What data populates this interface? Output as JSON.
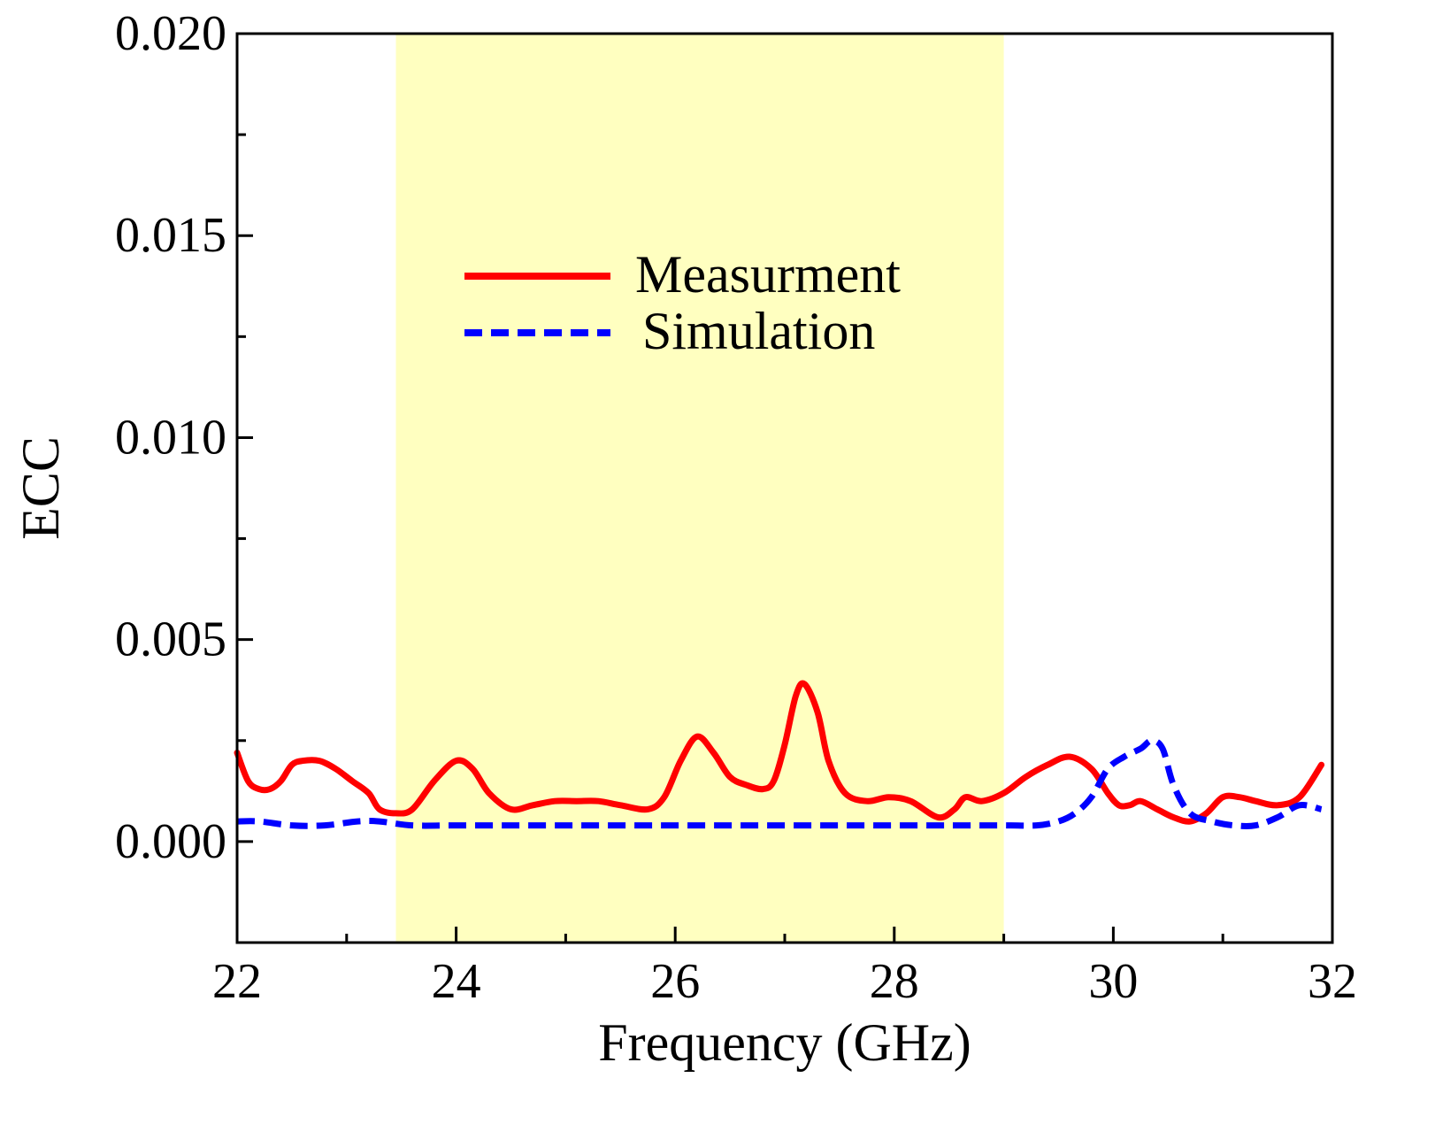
{
  "chart_data": {
    "type": "line",
    "title": "",
    "xlabel": "Frequency (GHz)",
    "ylabel": "ECC",
    "xlim": [
      22,
      32
    ],
    "ylim": [
      -0.0025,
      0.02
    ],
    "xticks": [
      22,
      24,
      26,
      28,
      30,
      32
    ],
    "xtick_labels": [
      "22",
      "24",
      "26",
      "28",
      "30",
      "32"
    ],
    "yticks": [
      0.0,
      0.005,
      0.01,
      0.015,
      0.02
    ],
    "ytick_labels": [
      "0.000",
      "0.005",
      "0.010",
      "0.015",
      "0.020"
    ],
    "highlight_band": {
      "x_start": 23.45,
      "x_end": 29.0,
      "color": "#ffffc0"
    },
    "legend_position": "upper-center",
    "series": [
      {
        "name": "Measurment",
        "color": "#ff0000",
        "style": "solid",
        "x": [
          22.0,
          22.1,
          22.2,
          22.3,
          22.4,
          22.5,
          22.6,
          22.75,
          22.9,
          23.05,
          23.2,
          23.3,
          23.45,
          23.6,
          23.8,
          24.0,
          24.15,
          24.3,
          24.5,
          24.7,
          24.9,
          25.1,
          25.3,
          25.5,
          25.75,
          25.9,
          26.05,
          26.2,
          26.35,
          26.5,
          26.65,
          26.8,
          26.9,
          27.0,
          27.1,
          27.18,
          27.3,
          27.4,
          27.55,
          27.75,
          27.95,
          28.15,
          28.4,
          28.55,
          28.65,
          28.8,
          29.0,
          29.2,
          29.4,
          29.6,
          29.8,
          29.95,
          30.05,
          30.15,
          30.25,
          30.4,
          30.55,
          30.7,
          30.85,
          31.0,
          31.15,
          31.3,
          31.5,
          31.7,
          31.9
        ],
        "values": [
          0.0022,
          0.0015,
          0.0013,
          0.0013,
          0.0015,
          0.0019,
          0.002,
          0.002,
          0.0018,
          0.0015,
          0.0012,
          0.0008,
          0.0007,
          0.0008,
          0.0015,
          0.002,
          0.0018,
          0.0012,
          0.0008,
          0.0009,
          0.001,
          0.001,
          0.001,
          0.0009,
          0.0008,
          0.0011,
          0.002,
          0.0026,
          0.0022,
          0.0016,
          0.0014,
          0.0013,
          0.0015,
          0.0024,
          0.0036,
          0.0039,
          0.0032,
          0.002,
          0.0012,
          0.001,
          0.0011,
          0.001,
          0.0006,
          0.0008,
          0.0011,
          0.001,
          0.0012,
          0.0016,
          0.0019,
          0.0021,
          0.0018,
          0.0012,
          0.0009,
          0.0009,
          0.001,
          0.0008,
          0.0006,
          0.0005,
          0.0007,
          0.0011,
          0.0011,
          0.001,
          0.0009,
          0.0011,
          0.0019
        ]
      },
      {
        "name": "Simulation",
        "color": "#0000ff",
        "style": "dashed",
        "x": [
          22.0,
          22.2,
          22.5,
          22.8,
          23.1,
          23.3,
          23.6,
          24.0,
          24.5,
          25.0,
          25.5,
          26.0,
          26.5,
          27.0,
          27.5,
          28.0,
          28.5,
          29.0,
          29.3,
          29.5,
          29.65,
          29.8,
          29.95,
          30.1,
          30.25,
          30.35,
          30.45,
          30.55,
          30.7,
          30.9,
          31.1,
          31.3,
          31.5,
          31.7,
          31.9
        ],
        "values": [
          0.0005,
          0.0005,
          0.0004,
          0.0004,
          0.0005,
          0.0005,
          0.0004,
          0.0004,
          0.0004,
          0.0004,
          0.0004,
          0.0004,
          0.0004,
          0.0004,
          0.0004,
          0.0004,
          0.0004,
          0.0004,
          0.0004,
          0.0005,
          0.0007,
          0.0011,
          0.0018,
          0.0021,
          0.0023,
          0.0025,
          0.0023,
          0.0014,
          0.0007,
          0.0005,
          0.0004,
          0.0004,
          0.0006,
          0.0009,
          0.0008
        ]
      }
    ]
  }
}
